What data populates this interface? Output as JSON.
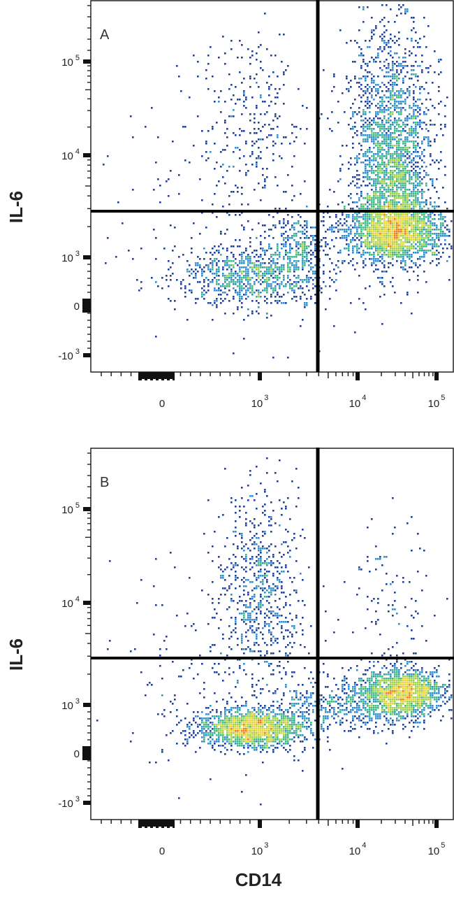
{
  "chart_data": [
    {
      "type": "scatter",
      "subtype": "flow-cytometry-density-plot",
      "panel_label": "A",
      "xlabel": "",
      "ylabel": "IL-6",
      "x_scale": "biexponential",
      "y_scale": "biexponential",
      "x_ticks": [
        {
          "base": "0",
          "exp": ""
        },
        {
          "base": "10",
          "exp": "3"
        },
        {
          "base": "10",
          "exp": "4"
        },
        {
          "base": "10",
          "exp": "5"
        }
      ],
      "y_ticks": [
        {
          "base": "10",
          "exp": "5"
        },
        {
          "base": "10",
          "exp": "4"
        },
        {
          "base": "10",
          "exp": "3"
        },
        {
          "base": "0",
          "exp": ""
        },
        {
          "base": "-10",
          "exp": "3"
        }
      ],
      "quadrant_gate": {
        "x": 3500,
        "y": 2300
      },
      "populations": [
        {
          "name": "",
          "center": [
            40000,
            1500
          ],
          "spread": "dense",
          "density": "high"
        },
        {
          "name": "",
          "center": [
            40000,
            20000
          ],
          "spread": "tall",
          "density": "medium"
        },
        {
          "name": "",
          "center": [
            1000,
            550
          ],
          "spread": "wide",
          "density": "low"
        },
        {
          "name": "",
          "center": [
            1000,
            40000
          ],
          "spread": "sparse",
          "density": "very-low"
        }
      ],
      "legend": "none",
      "grid": false
    },
    {
      "type": "scatter",
      "subtype": "flow-cytometry-density-plot",
      "panel_label": "B",
      "xlabel": "CD14",
      "ylabel": "IL-6",
      "x_scale": "biexponential",
      "y_scale": "biexponential",
      "x_ticks": [
        {
          "base": "0",
          "exp": ""
        },
        {
          "base": "10",
          "exp": "3"
        },
        {
          "base": "10",
          "exp": "4"
        },
        {
          "base": "10",
          "exp": "5"
        }
      ],
      "y_ticks": [
        {
          "base": "10",
          "exp": "5"
        },
        {
          "base": "10",
          "exp": "4"
        },
        {
          "base": "10",
          "exp": "3"
        },
        {
          "base": "0",
          "exp": ""
        },
        {
          "base": "-10",
          "exp": "3"
        }
      ],
      "quadrant_gate": {
        "x": 3500,
        "y": 2300
      },
      "populations": [
        {
          "name": "",
          "center": [
            1000,
            400
          ],
          "spread": "compact",
          "density": "high"
        },
        {
          "name": "",
          "center": [
            50000,
            1000
          ],
          "spread": "compact",
          "density": "high"
        },
        {
          "name": "",
          "center": [
            1000,
            20000
          ],
          "spread": "sparse",
          "density": "low"
        },
        {
          "name": "",
          "center": [
            40000,
            20000
          ],
          "spread": "sparse",
          "density": "very-low"
        }
      ],
      "legend": "none",
      "grid": false
    }
  ]
}
